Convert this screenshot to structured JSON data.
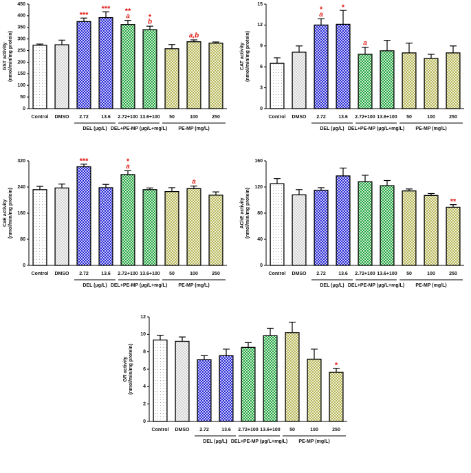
{
  "chart_data": [
    {
      "type": "bar",
      "ylabel": [
        "GST activity",
        "(nmol/min/mg protein)"
      ],
      "categories": [
        "Control",
        "DMSO",
        "2.72",
        "13.6",
        "2.72+100",
        "13.6+100",
        "50",
        "100",
        "250"
      ],
      "category_groups": [
        null,
        null,
        "DEL (μg/L)",
        "DEL (μg/L)",
        "DEL+PE-MP (μg/L+mg/L)",
        "DEL+PE-MP (μg/L+mg/L)",
        "PE-MP (mg/L)",
        "PE-MP (mg/L)",
        "PE-MP (mg/L)"
      ],
      "values": [
        273,
        275,
        375,
        392,
        362,
        340,
        258,
        288,
        282
      ],
      "errors": [
        5,
        20,
        15,
        25,
        18,
        15,
        18,
        8,
        5
      ],
      "stars": [
        null,
        null,
        "***",
        "***",
        "**",
        "*",
        null,
        null,
        null
      ],
      "letters": [
        null,
        null,
        null,
        null,
        "a",
        "b",
        null,
        "a,b",
        null
      ],
      "colors": [
        "#ffffff",
        "#d4d4d4",
        "#2b2bd6",
        "#2b2bd6",
        "#27a844",
        "#27a844",
        "#b8b85a",
        "#b8b85a",
        "#b8b85a"
      ],
      "ylim": [
        0,
        450
      ],
      "yticks": [
        0,
        50,
        100,
        150,
        200,
        250,
        300,
        350,
        400,
        450
      ]
    },
    {
      "type": "bar",
      "ylabel": [
        "CAT activity",
        "(nmol/min/mg protein)"
      ],
      "categories": [
        "Control",
        "DMSO",
        "2.72",
        "13.6",
        "2.72+100",
        "13.6+100",
        "50",
        "100",
        "250"
      ],
      "category_groups": [
        null,
        null,
        "DEL (μg/L)",
        "DEL (μg/L)",
        "DEL+PE-MP (μg/L+mg/L)",
        "DEL+PE-MP (μg/L+mg/L)",
        "PE-MP (mg/L)",
        "PE-MP (mg/L)",
        "PE-MP (mg/L)"
      ],
      "values": [
        6.5,
        8.1,
        12.0,
        12.1,
        7.8,
        8.3,
        8.0,
        7.2,
        8.0
      ],
      "errors": [
        0.8,
        0.9,
        0.9,
        2.0,
        1.0,
        1.5,
        1.4,
        0.6,
        1.0
      ],
      "stars": [
        null,
        null,
        "*",
        "*",
        null,
        null,
        null,
        null,
        null
      ],
      "letters": [
        null,
        null,
        "a",
        null,
        "a",
        null,
        null,
        null,
        null
      ],
      "colors": [
        "#ffffff",
        "#d4d4d4",
        "#2b2bd6",
        "#2b2bd6",
        "#27a844",
        "#27a844",
        "#b8b85a",
        "#b8b85a",
        "#b8b85a"
      ],
      "ylim": [
        0,
        15
      ],
      "yticks": [
        0,
        3,
        6,
        9,
        12,
        15
      ]
    },
    {
      "type": "bar",
      "ylabel": [
        "CaE activity",
        "(nmol/min/mg protein)"
      ],
      "categories": [
        "Control",
        "DMSO",
        "2.72",
        "13.6",
        "2.72+100",
        "13.6+100",
        "50",
        "100",
        "250"
      ],
      "category_groups": [
        null,
        null,
        "DEL (μg/L)",
        "DEL (μg/L)",
        "DEL+PE-MP (μg/L+mg/L)",
        "DEL+PE-MP (μg/L+mg/L)",
        "PE-MP (mg/L)",
        "PE-MP (mg/L)",
        "PE-MP (mg/L)"
      ],
      "values": [
        232,
        237,
        302,
        238,
        278,
        232,
        226,
        235,
        215
      ],
      "errors": [
        10,
        12,
        8,
        10,
        12,
        5,
        12,
        8,
        10
      ],
      "stars": [
        null,
        null,
        "***",
        null,
        "*",
        null,
        null,
        null,
        null
      ],
      "letters": [
        null,
        null,
        null,
        null,
        "a",
        null,
        null,
        "a",
        null
      ],
      "colors": [
        "#ffffff",
        "#d4d4d4",
        "#2b2bd6",
        "#2b2bd6",
        "#27a844",
        "#27a844",
        "#b8b85a",
        "#b8b85a",
        "#b8b85a"
      ],
      "ylim": [
        0,
        320
      ],
      "yticks": [
        0,
        80,
        160,
        240,
        320
      ]
    },
    {
      "type": "bar",
      "ylabel": [
        "AChE activity",
        "(nmol/min/mg protein)"
      ],
      "categories": [
        "Control",
        "DMSO",
        "2.72",
        "13.6",
        "2.72+100",
        "13.6+100",
        "50",
        "100",
        "250"
      ],
      "category_groups": [
        null,
        null,
        "DEL (μg/L)",
        "DEL (μg/L)",
        "DEL+PE-MP (μg/L+mg/L)",
        "DEL+PE-MP (μg/L+mg/L)",
        "PE-MP (mg/L)",
        "PE-MP (mg/L)",
        "PE-MP (mg/L)"
      ],
      "values": [
        125,
        108,
        115,
        137,
        128,
        122,
        114,
        107,
        89
      ],
      "errors": [
        8,
        8,
        4,
        12,
        10,
        8,
        3,
        3,
        4
      ],
      "stars": [
        null,
        null,
        null,
        null,
        null,
        null,
        null,
        null,
        "**"
      ],
      "letters": [
        null,
        null,
        null,
        null,
        null,
        null,
        null,
        null,
        null
      ],
      "colors": [
        "#ffffff",
        "#d4d4d4",
        "#2b2bd6",
        "#2b2bd6",
        "#27a844",
        "#27a844",
        "#b8b85a",
        "#b8b85a",
        "#b8b85a"
      ],
      "ylim": [
        0,
        160
      ],
      "yticks": [
        0,
        40,
        80,
        120,
        160
      ]
    },
    {
      "type": "bar",
      "ylabel": [
        "GR activity",
        "(nmol/min/mg protein)"
      ],
      "categories": [
        "Control",
        "DMSO",
        "2.72",
        "13.6",
        "2.72+100",
        "13.6+100",
        "50",
        "100",
        "250"
      ],
      "category_groups": [
        null,
        null,
        "DEL (μg/L)",
        "DEL (μg/L)",
        "DEL+PE-MP (μg/L+mg/L)",
        "DEL+PE-MP (μg/L+mg/L)",
        "PE-MP (mg/L)",
        "PE-MP (mg/L)",
        "PE-MP (mg/L)"
      ],
      "values": [
        9.35,
        9.2,
        7.1,
        7.55,
        8.5,
        9.85,
        10.2,
        7.15,
        5.65
      ],
      "errors": [
        0.55,
        0.5,
        0.45,
        0.75,
        0.55,
        0.85,
        1.2,
        1.15,
        0.45
      ],
      "stars": [
        null,
        null,
        null,
        null,
        null,
        null,
        null,
        null,
        "*"
      ],
      "letters": [
        null,
        null,
        null,
        null,
        null,
        null,
        null,
        null,
        null
      ],
      "colors": [
        "#ffffff",
        "#d4d4d4",
        "#2b2bd6",
        "#2b2bd6",
        "#27a844",
        "#27a844",
        "#b8b85a",
        "#b8b85a",
        "#b8b85a"
      ],
      "ylim": [
        0,
        12
      ],
      "yticks": [
        0,
        2,
        4,
        6,
        8,
        10,
        12
      ]
    }
  ]
}
